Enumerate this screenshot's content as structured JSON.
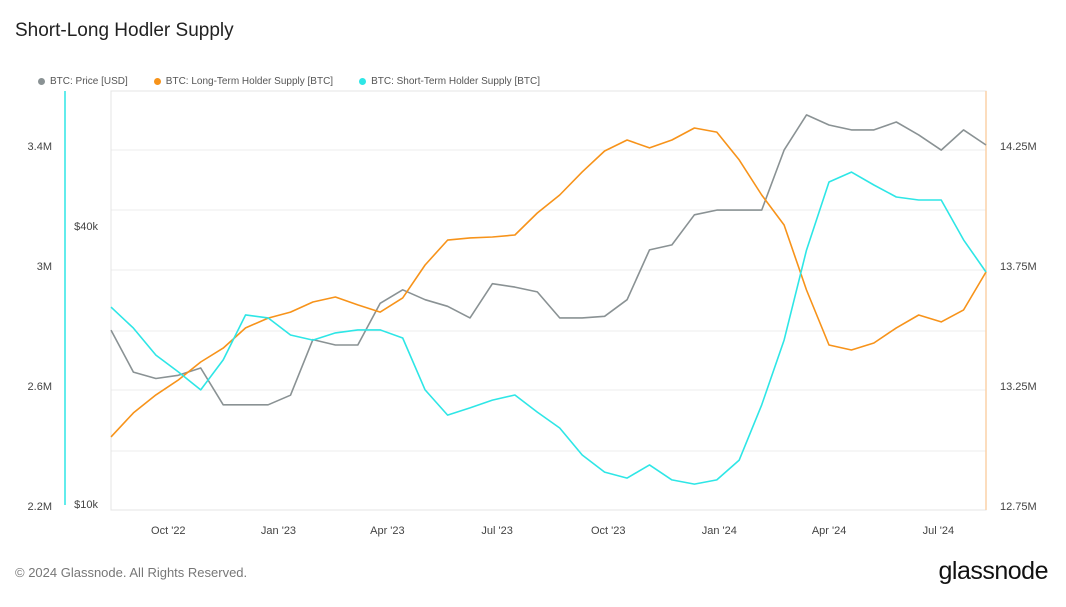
{
  "chart_data": {
    "type": "line",
    "title": "Short-Long Hodler Supply",
    "x_unit": "decimal year",
    "x_start": 2022.62,
    "x_step": 0.0509,
    "xlim": [
      2022.62,
      2024.605
    ],
    "x_ticks": [
      {
        "label": "Oct '22",
        "value": 2022.75
      },
      {
        "label": "Jan '23",
        "value": 2023.0
      },
      {
        "label": "Apr '23",
        "value": 2023.247
      },
      {
        "label": "Jul '23",
        "value": 2023.496
      },
      {
        "label": "Oct '23",
        "value": 2023.748
      },
      {
        "label": "Jan '24",
        "value": 2024.0
      },
      {
        "label": "Apr '24",
        "value": 2024.249
      },
      {
        "label": "Jul '24",
        "value": 2024.497
      }
    ],
    "y_left": {
      "label": "Short-Term Holder Supply",
      "ylim": [
        2.2,
        3.4
      ],
      "ticks": [
        {
          "label": "3.4M",
          "value": 3.4
        },
        {
          "label": "3M",
          "value": 3.0
        },
        {
          "label": "2.6M",
          "value": 2.6
        },
        {
          "label": "2.2M",
          "value": 2.2
        }
      ]
    },
    "y_price": {
      "label": "Price",
      "scale": "log",
      "ticks": [
        {
          "label": "$40k",
          "value": 40
        },
        {
          "label": "$10k",
          "value": 10
        }
      ]
    },
    "y_right": {
      "label": "Long-Term Holder Supply",
      "ylim": [
        12.75,
        14.25
      ],
      "ticks": [
        {
          "label": "14.25M",
          "value": 14.25
        },
        {
          "label": "13.75M",
          "value": 13.75
        },
        {
          "label": "13.25M",
          "value": 13.25
        },
        {
          "label": "12.75M",
          "value": 12.75
        }
      ]
    },
    "series": [
      {
        "name": "BTC: Price [USD]",
        "axis": "price",
        "unit": "k USD",
        "color": "#8a9294",
        "values": [
          23.8,
          19.3,
          18.7,
          19.0,
          19.7,
          16.4,
          16.4,
          16.4,
          17.2,
          22.7,
          22.1,
          22.1,
          27.2,
          29.1,
          27.7,
          26.8,
          25.3,
          30.0,
          29.5,
          28.8,
          25.3,
          25.3,
          25.5,
          27.7,
          35.5,
          36.4,
          42.3,
          43.3,
          43.3,
          43.3,
          58.4,
          69.6,
          66.2,
          64.6,
          64.6,
          67.2,
          63.0,
          58.4,
          64.6,
          59.9
        ]
      },
      {
        "name": "BTC: Long-Term Holder Supply [BTC]",
        "axis": "right",
        "unit": "M BTC",
        "color": "#f7931a",
        "values": [
          13.038,
          13.138,
          13.213,
          13.275,
          13.35,
          13.408,
          13.492,
          13.533,
          13.558,
          13.6,
          13.621,
          13.588,
          13.558,
          13.617,
          13.754,
          13.858,
          13.867,
          13.871,
          13.879,
          13.971,
          14.046,
          14.142,
          14.229,
          14.275,
          14.242,
          14.275,
          14.325,
          14.308,
          14.192,
          14.046,
          13.921,
          13.65,
          13.421,
          13.4,
          13.429,
          13.492,
          13.546,
          13.517,
          13.567,
          13.725
        ]
      },
      {
        "name": "BTC: Short-Term Holder Supply [BTC]",
        "axis": "left",
        "unit": "M BTC",
        "color": "#2ee6e6",
        "values": [
          2.863,
          2.793,
          2.703,
          2.647,
          2.587,
          2.687,
          2.837,
          2.827,
          2.77,
          2.753,
          2.777,
          2.787,
          2.787,
          2.76,
          2.587,
          2.503,
          2.527,
          2.553,
          2.57,
          2.513,
          2.46,
          2.37,
          2.313,
          2.293,
          2.337,
          2.287,
          2.273,
          2.287,
          2.353,
          2.537,
          2.753,
          3.053,
          3.28,
          3.313,
          3.27,
          3.23,
          3.22,
          3.22,
          3.087,
          2.98
        ]
      }
    ],
    "legend_position": "top-left",
    "grid": true
  },
  "footer": {
    "copyright": "© 2024 Glassnode. All Rights Reserved.",
    "logo": "glassnode"
  }
}
